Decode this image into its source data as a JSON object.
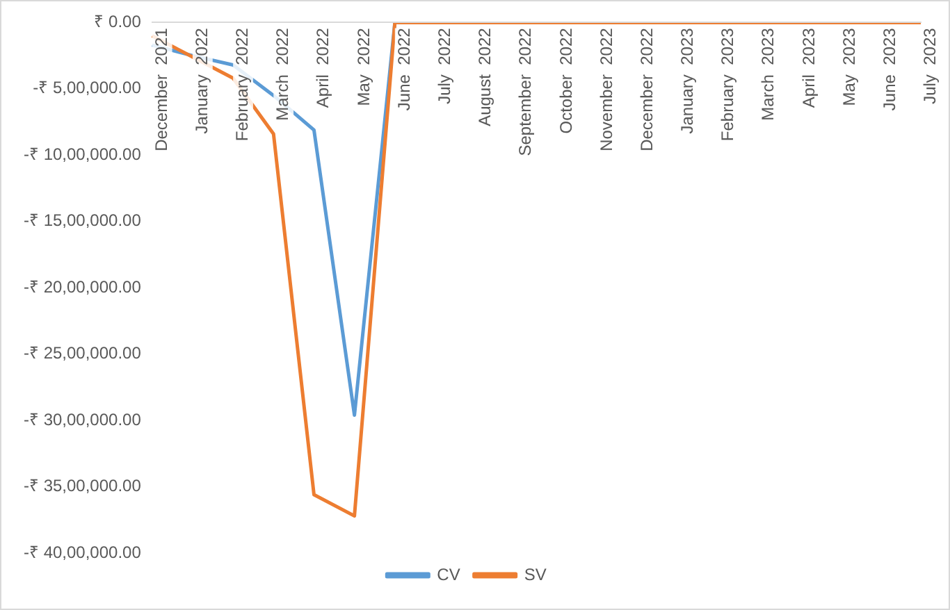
{
  "chart_data": {
    "type": "line",
    "categories": [
      "December  2021",
      "January  2022",
      "February  2022",
      "March  2022",
      "April  2022",
      "May  2022",
      "June  2022",
      "July  2022",
      "August  2022",
      "September  2022",
      "October  2022",
      "November  2022",
      "December  2022",
      "January  2023",
      "February  2023",
      "March  2023",
      "April  2023",
      "May  2023",
      "June  2023",
      "July  2023"
    ],
    "series": [
      {
        "name": "CV",
        "color": "#5b9bd5",
        "values": [
          -170000,
          -250000,
          -320000,
          -550000,
          -810000,
          -2960000,
          0,
          null,
          null,
          null,
          null,
          null,
          null,
          null,
          null,
          null,
          null,
          null,
          null,
          null
        ]
      },
      {
        "name": "SV",
        "color": "#ed7d31",
        "values": [
          -100000,
          -260000,
          -420000,
          -840000,
          -3560000,
          -3720000,
          0,
          0,
          0,
          0,
          0,
          0,
          0,
          0,
          0,
          0,
          0,
          0,
          0,
          0
        ]
      }
    ],
    "ylim": [
      -4000000,
      0
    ],
    "yticks": [
      {
        "value": 0,
        "label": "₹ 0.00"
      },
      {
        "value": -500000,
        "label": "-₹ 5,00,000.00"
      },
      {
        "value": -1000000,
        "label": "-₹ 10,00,000.00"
      },
      {
        "value": -1500000,
        "label": "-₹ 15,00,000.00"
      },
      {
        "value": -2000000,
        "label": "-₹ 20,00,000.00"
      },
      {
        "value": -2500000,
        "label": "-₹ 25,00,000.00"
      },
      {
        "value": -3000000,
        "label": "-₹ 30,00,000.00"
      },
      {
        "value": -3500000,
        "label": "-₹ 35,00,000.00"
      },
      {
        "value": -4000000,
        "label": "-₹ 40,00,000.00"
      }
    ],
    "grid": false,
    "legend": "bottom",
    "marker": "none",
    "line_style": "solid"
  }
}
